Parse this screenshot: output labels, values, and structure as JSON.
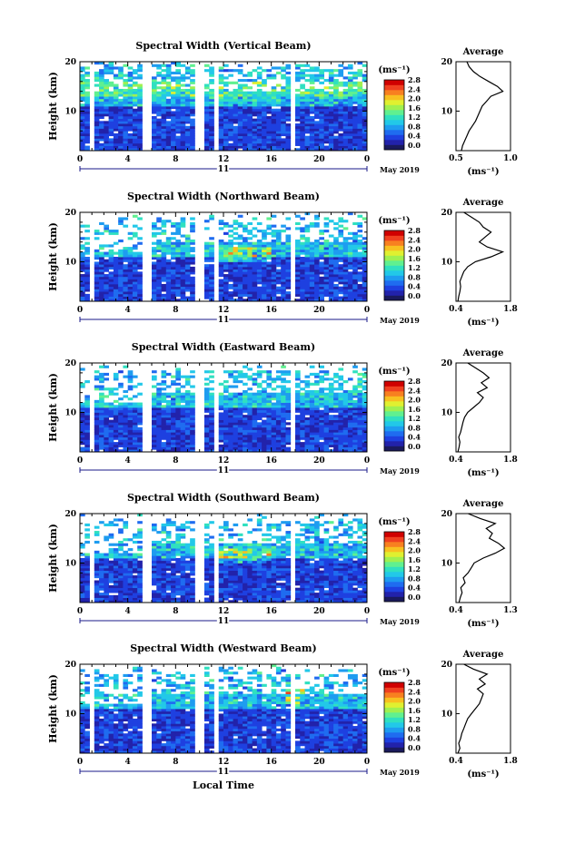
{
  "colors": {
    "colorbar": [
      "#1a1a5c",
      "#2222aa",
      "#1e40e0",
      "#1f6cf0",
      "#1e9cf0",
      "#22c8e8",
      "#30e0c0",
      "#60f090",
      "#a0f050",
      "#e0f030",
      "#f8c020",
      "#f88020",
      "#f04020",
      "#d00000"
    ]
  },
  "chart_data": [
    {
      "type": "heatmap",
      "title": "Spectral Width (Vertical Beam)",
      "ylabel": "Height (km)",
      "x_ticks": [
        "0",
        "4",
        "8",
        "12",
        "16",
        "20",
        "0"
      ],
      "y_ticks": [
        "20",
        "10"
      ],
      "date_marker": "11",
      "date_label": "May 2019",
      "xlim": [
        0,
        24
      ],
      "ylim": [
        2,
        20
      ],
      "colorbar": {
        "unit": "(ms⁻¹)",
        "ticks": [
          "2.8",
          "2.4",
          "2.0",
          "1.6",
          "1.2",
          "0.8",
          "0.4",
          "0.0"
        ],
        "range": [
          0.0,
          3.0
        ]
      },
      "profile": {
        "title": "Average",
        "xlabel": "(ms⁻¹)",
        "x_ticks": [
          "0.5",
          "1.0"
        ],
        "xlim": [
          0.5,
          1.0
        ],
        "y_ticks": [
          "20",
          "10"
        ],
        "height": [
          2,
          3,
          4,
          5,
          6,
          7,
          8,
          9,
          10,
          11,
          12,
          13,
          14,
          15,
          16,
          17,
          18,
          19,
          20
        ],
        "width": [
          0.55,
          0.56,
          0.58,
          0.6,
          0.62,
          0.65,
          0.68,
          0.7,
          0.72,
          0.74,
          0.78,
          0.82,
          0.93,
          0.88,
          0.8,
          0.72,
          0.66,
          0.62,
          0.6
        ]
      }
    },
    {
      "type": "heatmap",
      "title": "Spectral Width (Northward Beam)",
      "ylabel": "Height (km)",
      "x_ticks": [
        "0",
        "4",
        "8",
        "12",
        "16",
        "20",
        "0"
      ],
      "y_ticks": [
        "20",
        "10"
      ],
      "date_marker": "11",
      "date_label": "May 2019",
      "xlim": [
        0,
        24
      ],
      "ylim": [
        2,
        20
      ],
      "colorbar": {
        "unit": "(ms⁻¹)",
        "ticks": [
          "2.8",
          "2.4",
          "2.0",
          "1.6",
          "1.2",
          "0.8",
          "0.4",
          "0.0"
        ],
        "range": [
          0.0,
          3.0
        ]
      },
      "profile": {
        "title": "Average",
        "xlabel": "(ms⁻¹)",
        "x_ticks": [
          "0.4",
          "1.8"
        ],
        "xlim": [
          0.4,
          1.8
        ],
        "y_ticks": [
          "20",
          "10"
        ],
        "height": [
          2,
          3,
          4,
          5,
          6,
          7,
          8,
          9,
          10,
          11,
          12,
          13,
          14,
          15,
          16,
          17,
          18,
          19,
          20
        ],
        "width": [
          0.45,
          0.47,
          0.5,
          0.52,
          0.5,
          0.55,
          0.6,
          0.7,
          0.9,
          1.3,
          1.6,
          1.2,
          1.0,
          1.15,
          1.3,
          1.1,
          1.0,
          0.8,
          0.6
        ]
      }
    },
    {
      "type": "heatmap",
      "title": "Spectral Width (Eastward Beam)",
      "ylabel": "Height (km)",
      "x_ticks": [
        "0",
        "4",
        "8",
        "12",
        "16",
        "20",
        "0"
      ],
      "y_ticks": [
        "20",
        "10"
      ],
      "date_marker": "11",
      "date_label": "May 2019",
      "xlim": [
        0,
        24
      ],
      "ylim": [
        2,
        20
      ],
      "colorbar": {
        "unit": "(ms⁻¹)",
        "ticks": [
          "2.8",
          "2.4",
          "2.0",
          "1.6",
          "1.2",
          "0.8",
          "0.4",
          "0.0"
        ],
        "range": [
          0.0,
          3.0
        ]
      },
      "profile": {
        "title": "Average",
        "xlabel": "(ms⁻¹)",
        "x_ticks": [
          "0.4",
          "1.8"
        ],
        "xlim": [
          0.4,
          1.8
        ],
        "y_ticks": [
          "20",
          "10"
        ],
        "height": [
          2,
          3,
          4,
          5,
          6,
          7,
          8,
          9,
          10,
          11,
          12,
          13,
          14,
          15,
          16,
          17,
          18,
          19,
          20
        ],
        "width": [
          0.45,
          0.48,
          0.5,
          0.47,
          0.52,
          0.55,
          0.58,
          0.62,
          0.7,
          0.85,
          1.0,
          1.1,
          0.95,
          1.2,
          1.05,
          1.25,
          1.1,
          0.9,
          0.7
        ]
      }
    },
    {
      "type": "heatmap",
      "title": "Spectral Width (Southward Beam)",
      "ylabel": "Height (km)",
      "x_ticks": [
        "0",
        "4",
        "8",
        "12",
        "16",
        "20",
        "0"
      ],
      "y_ticks": [
        "20",
        "10"
      ],
      "date_marker": "11",
      "date_label": "May 2019",
      "xlim": [
        0,
        24
      ],
      "ylim": [
        2,
        20
      ],
      "colorbar": {
        "unit": "(ms⁻¹)",
        "ticks": [
          "2.8",
          "2.4",
          "2.0",
          "1.6",
          "1.2",
          "0.8",
          "0.4",
          "0.0"
        ],
        "range": [
          0.0,
          3.0
        ]
      },
      "profile": {
        "title": "Average",
        "xlabel": "(ms⁻¹)",
        "x_ticks": [
          "0.4",
          "1.3"
        ],
        "xlim": [
          0.4,
          1.3
        ],
        "y_ticks": [
          "20",
          "10"
        ],
        "height": [
          2,
          3,
          4,
          5,
          6,
          7,
          8,
          9,
          10,
          11,
          12,
          13,
          14,
          15,
          16,
          17,
          18,
          19,
          20
        ],
        "width": [
          0.45,
          0.47,
          0.5,
          0.48,
          0.55,
          0.52,
          0.6,
          0.65,
          0.7,
          0.85,
          1.05,
          1.2,
          1.1,
          0.95,
          1.0,
          0.9,
          1.05,
          0.8,
          0.6
        ]
      }
    },
    {
      "type": "heatmap",
      "title": "Spectral Width (Westward Beam)",
      "ylabel": "Height (km)",
      "x_ticks": [
        "0",
        "4",
        "8",
        "12",
        "16",
        "20",
        "0"
      ],
      "y_ticks": [
        "20",
        "10"
      ],
      "date_marker": "11",
      "date_label": "May 2019",
      "xlabel": "Local Time",
      "xlim": [
        0,
        24
      ],
      "ylim": [
        2,
        20
      ],
      "colorbar": {
        "unit": "(ms⁻¹)",
        "ticks": [
          "2.8",
          "2.4",
          "2.0",
          "1.6",
          "1.2",
          "0.8",
          "0.4",
          "0.0"
        ],
        "range": [
          0.0,
          3.0
        ]
      },
      "profile": {
        "title": "Average",
        "xlabel": "(ms⁻¹)",
        "x_ticks": [
          "0.4",
          "1.8"
        ],
        "xlim": [
          0.4,
          1.8
        ],
        "y_ticks": [
          "20",
          "10"
        ],
        "height": [
          2,
          3,
          4,
          5,
          6,
          7,
          8,
          9,
          10,
          11,
          12,
          13,
          14,
          15,
          16,
          17,
          18,
          19,
          20
        ],
        "width": [
          0.45,
          0.5,
          0.47,
          0.52,
          0.55,
          0.6,
          0.65,
          0.7,
          0.8,
          0.9,
          1.0,
          1.05,
          1.1,
          0.95,
          1.15,
          1.0,
          1.2,
          0.85,
          0.6
        ]
      }
    }
  ]
}
